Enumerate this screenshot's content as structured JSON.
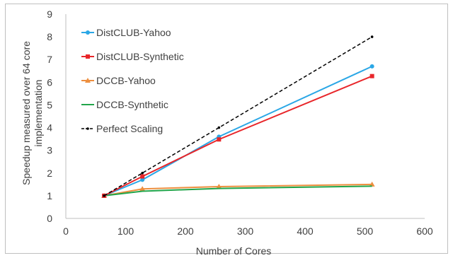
{
  "chart_data": {
    "type": "line",
    "title": "",
    "xlabel": "Number of Cores",
    "ylabel_lines": [
      "Speedup measured over 64 core",
      "implementation"
    ],
    "xlim": [
      0,
      600
    ],
    "ylim": [
      0,
      9
    ],
    "x_ticks": [
      0,
      100,
      200,
      300,
      400,
      500,
      600
    ],
    "y_ticks": [
      0,
      1,
      2,
      3,
      4,
      5,
      6,
      7,
      8,
      9
    ],
    "grid": false,
    "legend_position": "top-left",
    "series": [
      {
        "name": "DistCLUB-Yahoo",
        "color": "#2aa7e6",
        "marker": "circle",
        "dash": "solid",
        "x": [
          64,
          128,
          256,
          512
        ],
        "y": [
          1.0,
          1.7,
          3.6,
          6.7
        ]
      },
      {
        "name": "DistCLUB-Synthetic",
        "color": "#e8262a",
        "marker": "square",
        "dash": "solid",
        "x": [
          64,
          128,
          256,
          512
        ],
        "y": [
          1.0,
          1.85,
          3.48,
          6.27
        ]
      },
      {
        "name": "DCCB-Yahoo",
        "color": "#ed8f3f",
        "marker": "triangle",
        "dash": "solid",
        "x": [
          64,
          128,
          256,
          512
        ],
        "y": [
          1.0,
          1.3,
          1.4,
          1.5
        ]
      },
      {
        "name": "DCCB-Synthetic",
        "color": "#21a54a",
        "marker": "none",
        "dash": "solid",
        "x": [
          64,
          128,
          256,
          512
        ],
        "y": [
          1.0,
          1.2,
          1.32,
          1.42
        ]
      },
      {
        "name": "Perfect Scaling",
        "color": "#000000",
        "marker": "dot",
        "dash": "dashed",
        "x": [
          64,
          128,
          256,
          512
        ],
        "y": [
          1,
          2,
          4,
          8
        ]
      }
    ]
  }
}
